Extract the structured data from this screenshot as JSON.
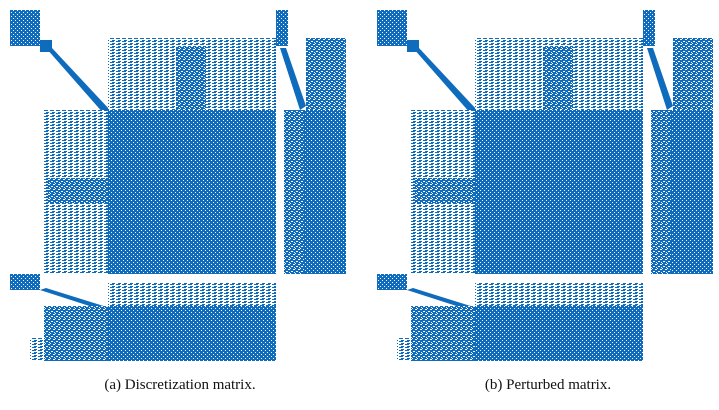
{
  "figures": [
    {
      "caption": "(a) Discretization matrix."
    },
    {
      "caption": "(b) Perturbed matrix."
    }
  ]
}
